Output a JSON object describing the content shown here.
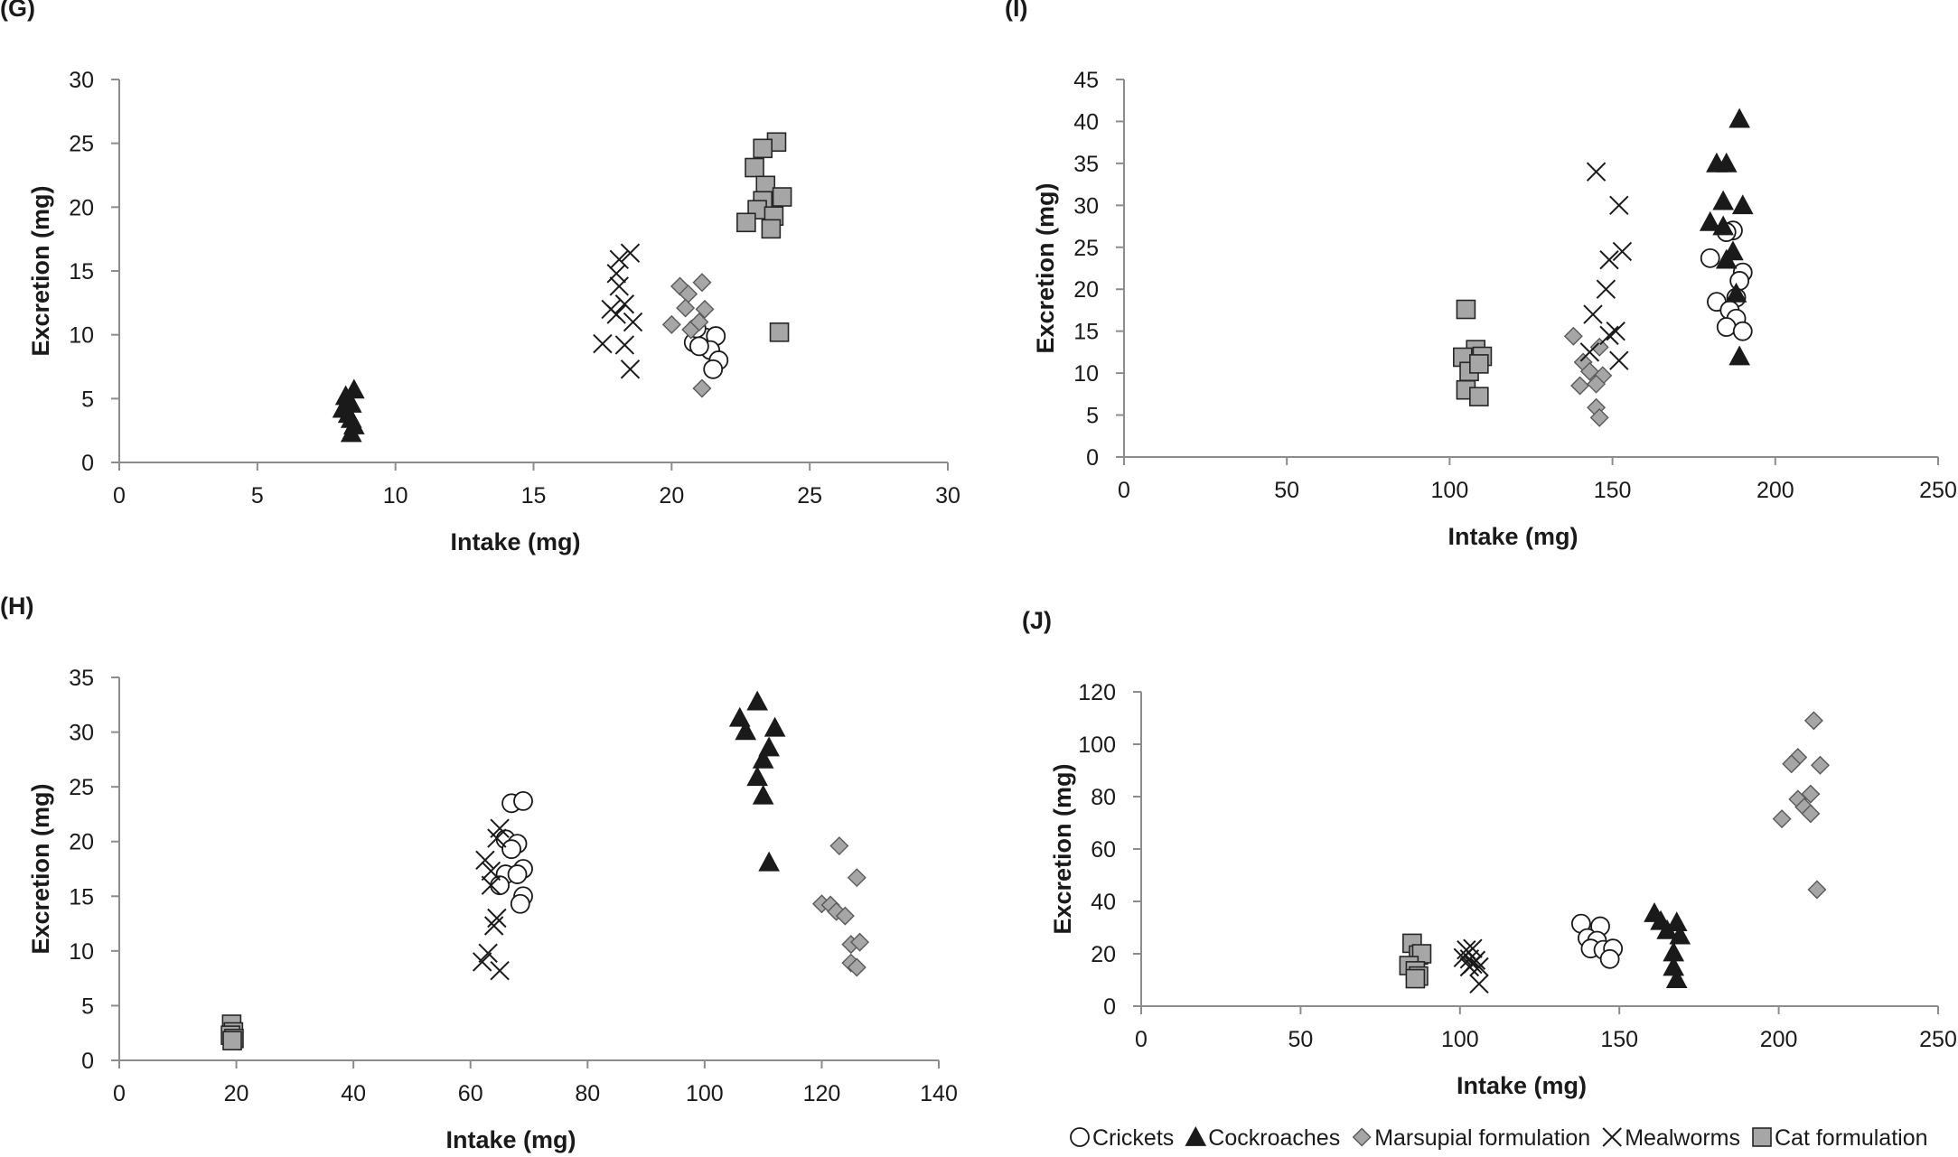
{
  "colors": {
    "axis": "#8c8c8c",
    "marker_dark": "#1a1a1a",
    "marker_gray": "#a6a6a6",
    "marker_open": "#ffffff"
  },
  "legend": [
    {
      "name": "Crickets",
      "marker": "circle"
    },
    {
      "name": "Cockroaches",
      "marker": "triangle"
    },
    {
      "name": "Marsupial formulation",
      "marker": "diamond"
    },
    {
      "name": "Mealworms",
      "marker": "x"
    },
    {
      "name": "Cat formulation",
      "marker": "square"
    }
  ],
  "chart_data": [
    {
      "type": "scatter",
      "panel_label": "(G)",
      "xlabel": "Intake (mg)",
      "ylabel": "Excretion (mg)",
      "xlim": [
        0,
        30
      ],
      "ylim": [
        0,
        30
      ],
      "xticks": [
        0,
        5,
        10,
        15,
        20,
        25,
        30
      ],
      "yticks": [
        0,
        5,
        10,
        15,
        20,
        25,
        30
      ],
      "series": [
        {
          "name": "Crickets",
          "marker": "circle",
          "points": [
            [
              21.2,
              9.8
            ],
            [
              21.6,
              9.9
            ],
            [
              21.4,
              8.8
            ],
            [
              21.7,
              8.0
            ],
            [
              21.5,
              7.3
            ],
            [
              20.8,
              9.4
            ],
            [
              20.9,
              10.5
            ],
            [
              21.0,
              9.1
            ]
          ]
        },
        {
          "name": "Cockroaches",
          "marker": "triangle",
          "points": [
            [
              8.5,
              5.7
            ],
            [
              8.2,
              5.2
            ],
            [
              8.4,
              4.6
            ],
            [
              8.1,
              4.2
            ],
            [
              8.3,
              3.8
            ],
            [
              8.4,
              3.4
            ],
            [
              8.5,
              2.9
            ],
            [
              8.4,
              2.3
            ]
          ]
        },
        {
          "name": "Marsupial formulation",
          "marker": "diamond",
          "points": [
            [
              20.3,
              13.8
            ],
            [
              21.1,
              14.1
            ],
            [
              20.6,
              13.2
            ],
            [
              20.5,
              12.1
            ],
            [
              21.2,
              12.0
            ],
            [
              20.0,
              10.8
            ],
            [
              20.7,
              10.4
            ],
            [
              21.0,
              11.0
            ],
            [
              21.1,
              5.8
            ]
          ]
        },
        {
          "name": "Mealworms",
          "marker": "x",
          "points": [
            [
              18.1,
              15.9
            ],
            [
              18.5,
              16.4
            ],
            [
              18.0,
              14.8
            ],
            [
              18.1,
              13.8
            ],
            [
              17.8,
              12.0
            ],
            [
              18.3,
              12.4
            ],
            [
              18.0,
              11.6
            ],
            [
              18.6,
              11.0
            ],
            [
              17.5,
              9.3
            ],
            [
              18.3,
              9.2
            ],
            [
              18.5,
              7.3
            ]
          ]
        },
        {
          "name": "Cat formulation",
          "marker": "square",
          "points": [
            [
              23.8,
              25.1
            ],
            [
              23.3,
              24.6
            ],
            [
              23.0,
              23.1
            ],
            [
              23.4,
              21.7
            ],
            [
              24.0,
              20.8
            ],
            [
              23.3,
              20.5
            ],
            [
              23.1,
              19.8
            ],
            [
              23.7,
              19.3
            ],
            [
              22.7,
              18.8
            ],
            [
              23.6,
              18.3
            ],
            [
              23.9,
              10.2
            ]
          ]
        }
      ]
    },
    {
      "type": "scatter",
      "panel_label": "(I)",
      "xlabel": "Intake (mg)",
      "ylabel": "Excretion (mg)",
      "xlim": [
        0,
        250
      ],
      "ylim": [
        0,
        45
      ],
      "xticks": [
        0,
        50,
        100,
        150,
        200,
        250
      ],
      "yticks": [
        0,
        5,
        10,
        15,
        20,
        25,
        30,
        35,
        40,
        45
      ],
      "series": [
        {
          "name": "Crickets",
          "marker": "circle",
          "points": [
            [
              187,
              27
            ],
            [
              185,
              26.8
            ],
            [
              180,
              23.7
            ],
            [
              190,
              22
            ],
            [
              189,
              21
            ],
            [
              182,
              18.5
            ],
            [
              188,
              19
            ],
            [
              186,
              17.5
            ],
            [
              188,
              16.5
            ],
            [
              185,
              15.5
            ],
            [
              190,
              15
            ]
          ]
        },
        {
          "name": "Cockroaches",
          "marker": "triangle",
          "points": [
            [
              189,
              40.3
            ],
            [
              182,
              35
            ],
            [
              185,
              35
            ],
            [
              184,
              30.5
            ],
            [
              190,
              30
            ],
            [
              180,
              28
            ],
            [
              184,
              27.5
            ],
            [
              187,
              24.5
            ],
            [
              185,
              23.5
            ],
            [
              188,
              19.5
            ],
            [
              189,
              12
            ]
          ]
        },
        {
          "name": "Marsupial formulation",
          "marker": "diamond",
          "points": [
            [
              138,
              14.4
            ],
            [
              146,
              13.1
            ],
            [
              141,
              11.3
            ],
            [
              143,
              10.2
            ],
            [
              147,
              9.7
            ],
            [
              140,
              8.5
            ],
            [
              145,
              8.7
            ],
            [
              145,
              5.9
            ],
            [
              146,
              4.7
            ]
          ]
        },
        {
          "name": "Mealworms",
          "marker": "x",
          "points": [
            [
              145,
              34
            ],
            [
              152,
              30
            ],
            [
              153,
              24.5
            ],
            [
              149,
              23.5
            ],
            [
              148,
              20
            ],
            [
              144,
              17
            ],
            [
              151,
              15
            ],
            [
              149,
              14.5
            ],
            [
              143,
              12.5
            ],
            [
              152,
              11.5
            ]
          ]
        },
        {
          "name": "Cat formulation",
          "marker": "square",
          "points": [
            [
              105,
              17.6
            ],
            [
              108,
              12.8
            ],
            [
              104,
              11.9
            ],
            [
              110,
              12
            ],
            [
              106,
              10.2
            ],
            [
              109,
              11.1
            ],
            [
              105,
              8
            ],
            [
              109,
              7.2
            ]
          ]
        }
      ]
    },
    {
      "type": "scatter",
      "panel_label": "(H)",
      "xlabel": "Intake (mg)",
      "ylabel": "Excretion (mg)",
      "xlim": [
        0,
        140
      ],
      "ylim": [
        0,
        35
      ],
      "xticks": [
        0,
        20,
        40,
        60,
        80,
        100,
        120,
        140
      ],
      "yticks": [
        0,
        5,
        10,
        15,
        20,
        25,
        30,
        35
      ],
      "series": [
        {
          "name": "Crickets",
          "marker": "circle",
          "points": [
            [
              67,
              23.5
            ],
            [
              69,
              23.7
            ],
            [
              66,
              20.2
            ],
            [
              68,
              19.8
            ],
            [
              67,
              19.3
            ],
            [
              69,
              17.5
            ],
            [
              66,
              17
            ],
            [
              68,
              17
            ],
            [
              65,
              16
            ],
            [
              69,
              15
            ],
            [
              68.5,
              14.3
            ]
          ]
        },
        {
          "name": "Cockroaches",
          "marker": "triangle",
          "points": [
            [
              109,
              32.8
            ],
            [
              106,
              31.3
            ],
            [
              107,
              30.1
            ],
            [
              112,
              30.4
            ],
            [
              111,
              28.6
            ],
            [
              110,
              27.5
            ],
            [
              109,
              25.9
            ],
            [
              110,
              24.2
            ],
            [
              111,
              18.1
            ]
          ]
        },
        {
          "name": "Marsupial formulation",
          "marker": "diamond",
          "points": [
            [
              123,
              19.6
            ],
            [
              126,
              16.7
            ],
            [
              120,
              14.3
            ],
            [
              121.5,
              14.2
            ],
            [
              122.5,
              13.6
            ],
            [
              124,
              13.2
            ],
            [
              125,
              10.6
            ],
            [
              126.5,
              10.8
            ],
            [
              125,
              8.9
            ],
            [
              126,
              8.5
            ]
          ]
        },
        {
          "name": "Mealworms",
          "marker": "x",
          "points": [
            [
              65,
              21.2
            ],
            [
              64.5,
              20.3
            ],
            [
              62.5,
              18.3
            ],
            [
              63.5,
              17.3
            ],
            [
              63.5,
              16
            ],
            [
              64,
              12.3
            ],
            [
              64.5,
              13
            ],
            [
              62,
              9
            ],
            [
              63,
              9.8
            ],
            [
              65,
              8.2
            ]
          ]
        },
        {
          "name": "Cat formulation",
          "marker": "square",
          "points": [
            [
              19.2,
              3.3
            ],
            [
              19.5,
              2.6
            ],
            [
              19,
              2.3
            ],
            [
              19.6,
              2
            ],
            [
              19.3,
              1.8
            ]
          ]
        }
      ]
    },
    {
      "type": "scatter",
      "panel_label": "(J)",
      "xlabel": "Intake (mg)",
      "ylabel": "Excretion (mg)",
      "xlim": [
        0,
        250
      ],
      "ylim": [
        0,
        120
      ],
      "xticks": [
        0,
        50,
        100,
        150,
        200,
        250
      ],
      "yticks": [
        0,
        20,
        40,
        60,
        80,
        100,
        120
      ],
      "series": [
        {
          "name": "Crickets",
          "marker": "circle",
          "points": [
            [
              138,
              31.5
            ],
            [
              144,
              30.5
            ],
            [
              140,
              26
            ],
            [
              143,
              25
            ],
            [
              141,
              22
            ],
            [
              145,
              21.5
            ],
            [
              148,
              22
            ],
            [
              147,
              18
            ]
          ]
        },
        {
          "name": "Cockroaches",
          "marker": "triangle",
          "points": [
            [
              161,
              35.5
            ],
            [
              163,
              32.5
            ],
            [
              168,
              32
            ],
            [
              165,
              29
            ],
            [
              169,
              27
            ],
            [
              167,
              20.5
            ],
            [
              167,
              15
            ],
            [
              168,
              10.3
            ]
          ]
        },
        {
          "name": "Marsupial formulation",
          "marker": "diamond",
          "points": [
            [
              211,
              109
            ],
            [
              206,
              95
            ],
            [
              204,
              92.5
            ],
            [
              213,
              92
            ],
            [
              210,
              81
            ],
            [
              206,
              79
            ],
            [
              208,
              76
            ],
            [
              210,
              73.5
            ],
            [
              201,
              71.5
            ],
            [
              212,
              44.5
            ]
          ]
        },
        {
          "name": "Mealworms",
          "marker": "x",
          "points": [
            [
              102,
              21.5
            ],
            [
              104,
              22
            ],
            [
              101,
              18.5
            ],
            [
              103,
              18
            ],
            [
              105,
              17.5
            ],
            [
              104,
              16
            ],
            [
              106,
              15
            ],
            [
              103,
              15
            ],
            [
              106,
              8.5
            ]
          ]
        },
        {
          "name": "Cat formulation",
          "marker": "square",
          "points": [
            [
              85,
              24
            ],
            [
              87,
              19.5
            ],
            [
              88,
              20
            ],
            [
              84,
              15.5
            ],
            [
              86,
              13.5
            ],
            [
              87,
              11.5
            ],
            [
              86,
              10.5
            ]
          ]
        }
      ]
    }
  ]
}
